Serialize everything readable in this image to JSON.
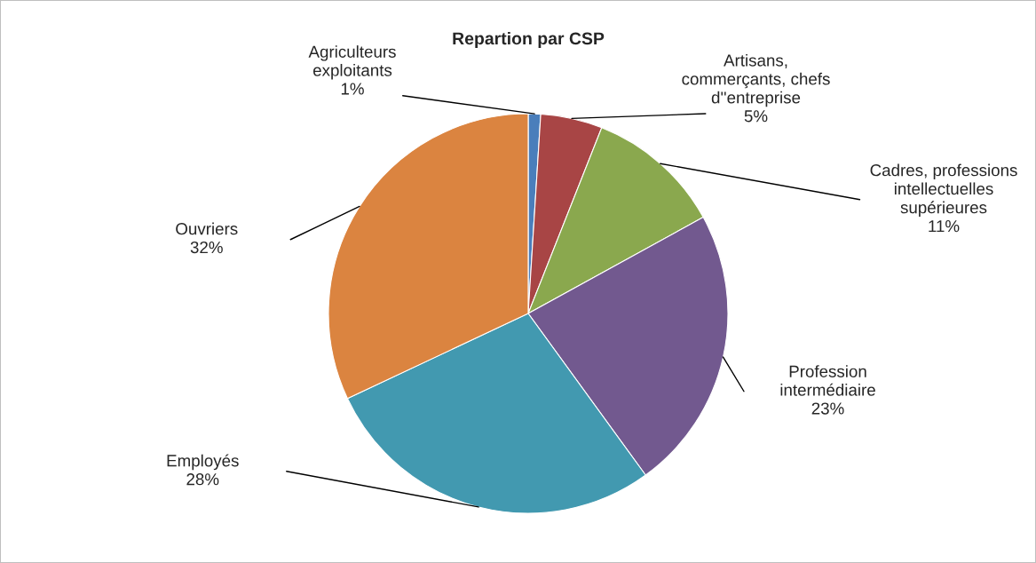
{
  "chart_data": {
    "type": "pie",
    "title": "Repartion par CSP",
    "categories": [
      "Agriculteurs\nexploitants",
      "Artisans,\ncommerçants, chefs\nd''entreprise",
      "Cadres, professions\nintellectuelles\nsupérieures",
      "Profession\nintermédiaire",
      "Employés",
      "Ouvriers"
    ],
    "values": [
      1,
      5,
      11,
      23,
      28,
      32
    ],
    "value_labels": [
      "1%",
      "5%",
      "11%",
      "23%",
      "28%",
      "32%"
    ],
    "colors": [
      "#4a7ebb",
      "#a84545",
      "#8aa84e",
      "#72598f",
      "#4299b0",
      "#db8440"
    ]
  }
}
